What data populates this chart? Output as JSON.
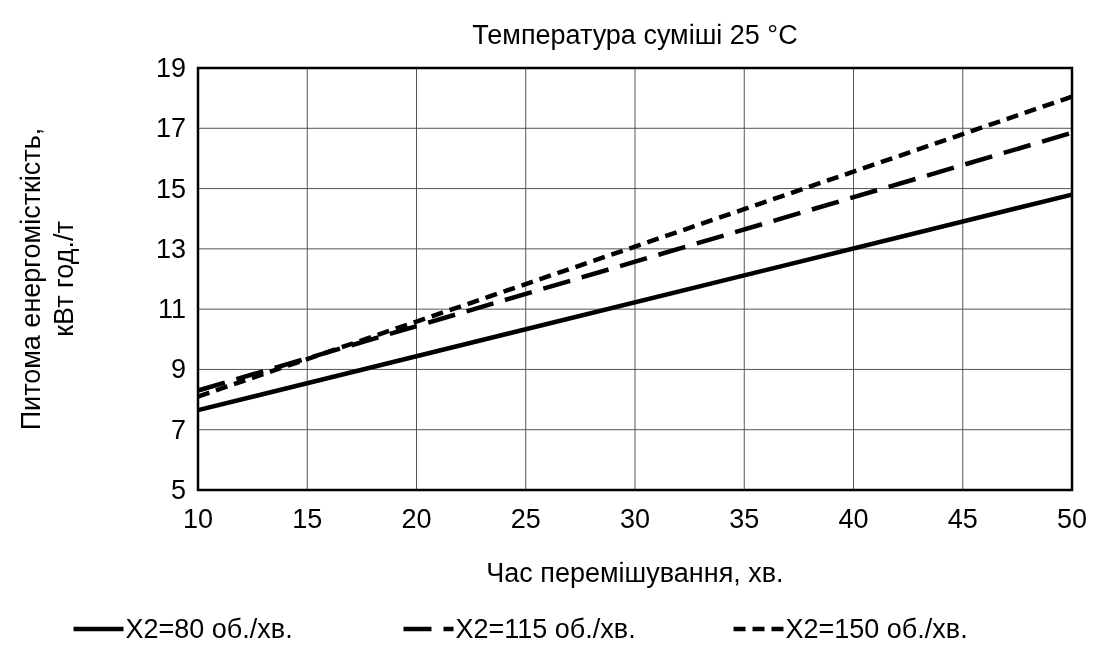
{
  "chart_data": {
    "type": "line",
    "title": "Температура суміші 25 °C",
    "xlabel": "Час перемішування, хв.",
    "ylabel": "Питома енергомісткість, кВт год./т",
    "x": [
      10,
      50
    ],
    "series": [
      {
        "name": "X2=80 об./хв.",
        "color": "#000000",
        "line_style": "solid",
        "values": [
          7.65,
          14.8
        ]
      },
      {
        "name": "X2=115 об./хв.",
        "color": "#000000",
        "line_style": "dashed",
        "values": [
          8.3,
          16.85
        ]
      },
      {
        "name": "X2=150 об./хв.",
        "color": "#000000",
        "line_style": "dotted",
        "values": [
          8.1,
          18.05
        ]
      }
    ],
    "xlim": [
      10,
      50
    ],
    "xticks": [
      10,
      15,
      20,
      25,
      30,
      35,
      40,
      45,
      50
    ],
    "ylim": [
      5,
      19
    ],
    "yticks": [
      5,
      7,
      9,
      11,
      13,
      15,
      17,
      19
    ],
    "grid": true,
    "legend": "bottom",
    "marker": "none"
  }
}
